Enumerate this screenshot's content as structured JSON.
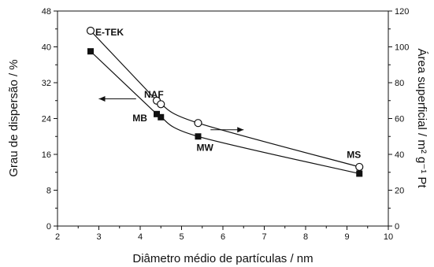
{
  "chart_data": {
    "type": "scatter",
    "xlabel": "Diâmetro médio de partículas / nm",
    "ylabel": "Grau de dispersão / %",
    "y2label": "Área superficial / m² g⁻¹ Pt",
    "xlim": [
      2,
      10
    ],
    "ylim": [
      0,
      48
    ],
    "y2lim": [
      0,
      120
    ],
    "xticks": [
      2,
      3,
      4,
      5,
      6,
      7,
      8,
      9,
      10
    ],
    "yticks": [
      0,
      8,
      16,
      24,
      32,
      40,
      48
    ],
    "y2ticks": [
      0,
      20,
      40,
      60,
      80,
      100,
      120
    ],
    "series": [
      {
        "axis": "left",
        "marker": "filled-square",
        "x": [
          2.8,
          4.4,
          4.5,
          5.4,
          9.3
        ],
        "y": [
          39,
          25,
          24.3,
          20,
          11.7
        ]
      },
      {
        "axis": "right",
        "marker": "open-circle",
        "x": [
          2.8,
          4.4,
          4.5,
          5.4,
          9.3
        ],
        "y": [
          109,
          70,
          68,
          57.5,
          33
        ]
      }
    ],
    "point_labels": [
      {
        "text": "E-TEK",
        "x": 2.8
      },
      {
        "text": "NAF",
        "x": 4.4
      },
      {
        "text": "MB",
        "x": 4.5
      },
      {
        "text": "MW",
        "x": 5.4
      },
      {
        "text": "MS",
        "x": 9.3
      }
    ],
    "annotations": [
      {
        "type": "arrow",
        "points_to": "left-axis"
      },
      {
        "type": "arrow",
        "points_to": "right-axis"
      }
    ],
    "grid": false,
    "colors": {
      "marks": "#111111",
      "background": "#ffffff"
    }
  }
}
